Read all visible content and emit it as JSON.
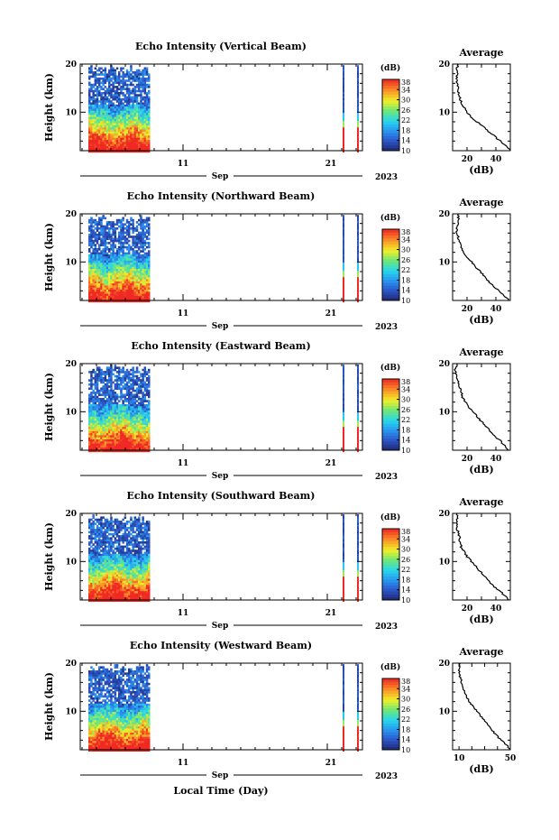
{
  "chart_data": {
    "type": "heatmap",
    "month_label": "Sep",
    "year_label": "2023",
    "x_tick_labels": [
      "11",
      "21"
    ],
    "xlabel": "Local Time (Day)",
    "ylabel": "Height (km)",
    "y_tick_labels": [
      "10",
      "20"
    ],
    "ylim": [
      2,
      20
    ],
    "colorbar": {
      "unit_label": "(dB)",
      "tick_labels": [
        "10",
        "14",
        "18",
        "22",
        "26",
        "30",
        "34",
        "38"
      ],
      "range": [
        10,
        38
      ]
    },
    "profile_title": "Average",
    "profile_xlabel": "(dB)",
    "panels": [
      {
        "title": "Echo Intensity (Vertical Beam)",
        "profile_ticks": [
          "20",
          "40"
        ],
        "profile_xlim": [
          10,
          50
        ],
        "profile": {
          "height": [
            2,
            3,
            4,
            5,
            6,
            7,
            8,
            9,
            10,
            11,
            12,
            13,
            14,
            15,
            16,
            17,
            18,
            19,
            20
          ],
          "db": [
            50,
            47,
            43,
            39,
            35,
            31,
            27,
            23,
            20,
            18,
            16,
            15,
            14,
            14,
            13,
            13,
            13,
            13,
            14
          ]
        }
      },
      {
        "title": "Echo Intensity (Northward Beam)",
        "profile_ticks": [
          "20",
          "40"
        ],
        "profile_xlim": [
          10,
          50
        ],
        "profile": {
          "height": [
            2,
            3,
            4,
            5,
            6,
            7,
            8,
            9,
            10,
            11,
            12,
            13,
            14,
            15,
            16,
            17,
            18,
            19,
            20
          ],
          "db": [
            49,
            46,
            42,
            38,
            35,
            32,
            29,
            26,
            23,
            20,
            18,
            16,
            15,
            14,
            13,
            13,
            14,
            14,
            14
          ]
        }
      },
      {
        "title": "Echo Intensity (Eastward Beam)",
        "profile_ticks": [
          "20",
          "40"
        ],
        "profile_xlim": [
          10,
          50
        ],
        "profile": {
          "height": [
            2,
            3,
            4,
            5,
            6,
            7,
            8,
            9,
            10,
            11,
            12,
            13,
            14,
            15,
            16,
            17,
            18,
            19,
            20
          ],
          "db": [
            49,
            46,
            43,
            39,
            36,
            33,
            30,
            27,
            24,
            21,
            19,
            17,
            16,
            15,
            14,
            13,
            12,
            12,
            13
          ]
        }
      },
      {
        "title": "Echo Intensity (Southward Beam)",
        "profile_ticks": [
          "20",
          "40"
        ],
        "profile_xlim": [
          10,
          50
        ],
        "profile": {
          "height": [
            2,
            3,
            4,
            5,
            6,
            7,
            8,
            9,
            10,
            11,
            12,
            13,
            14,
            15,
            16,
            17,
            18,
            19,
            20
          ],
          "db": [
            49,
            46,
            42,
            38,
            35,
            32,
            29,
            26,
            23,
            20,
            18,
            16,
            15,
            15,
            14,
            13,
            13,
            13,
            13
          ]
        }
      },
      {
        "title": "Echo Intensity (Westward Beam)",
        "profile_ticks": [
          "10",
          "50"
        ],
        "profile_xlim": [
          5,
          50
        ],
        "profile": {
          "height": [
            2,
            3,
            4,
            5,
            6,
            7,
            8,
            9,
            10,
            11,
            12,
            13,
            14,
            15,
            16,
            17,
            18,
            19,
            20
          ],
          "db": [
            50,
            47,
            43,
            39,
            36,
            33,
            30,
            27,
            24,
            21,
            18,
            16,
            14,
            13,
            12,
            11,
            10,
            10,
            11
          ]
        }
      }
    ]
  }
}
